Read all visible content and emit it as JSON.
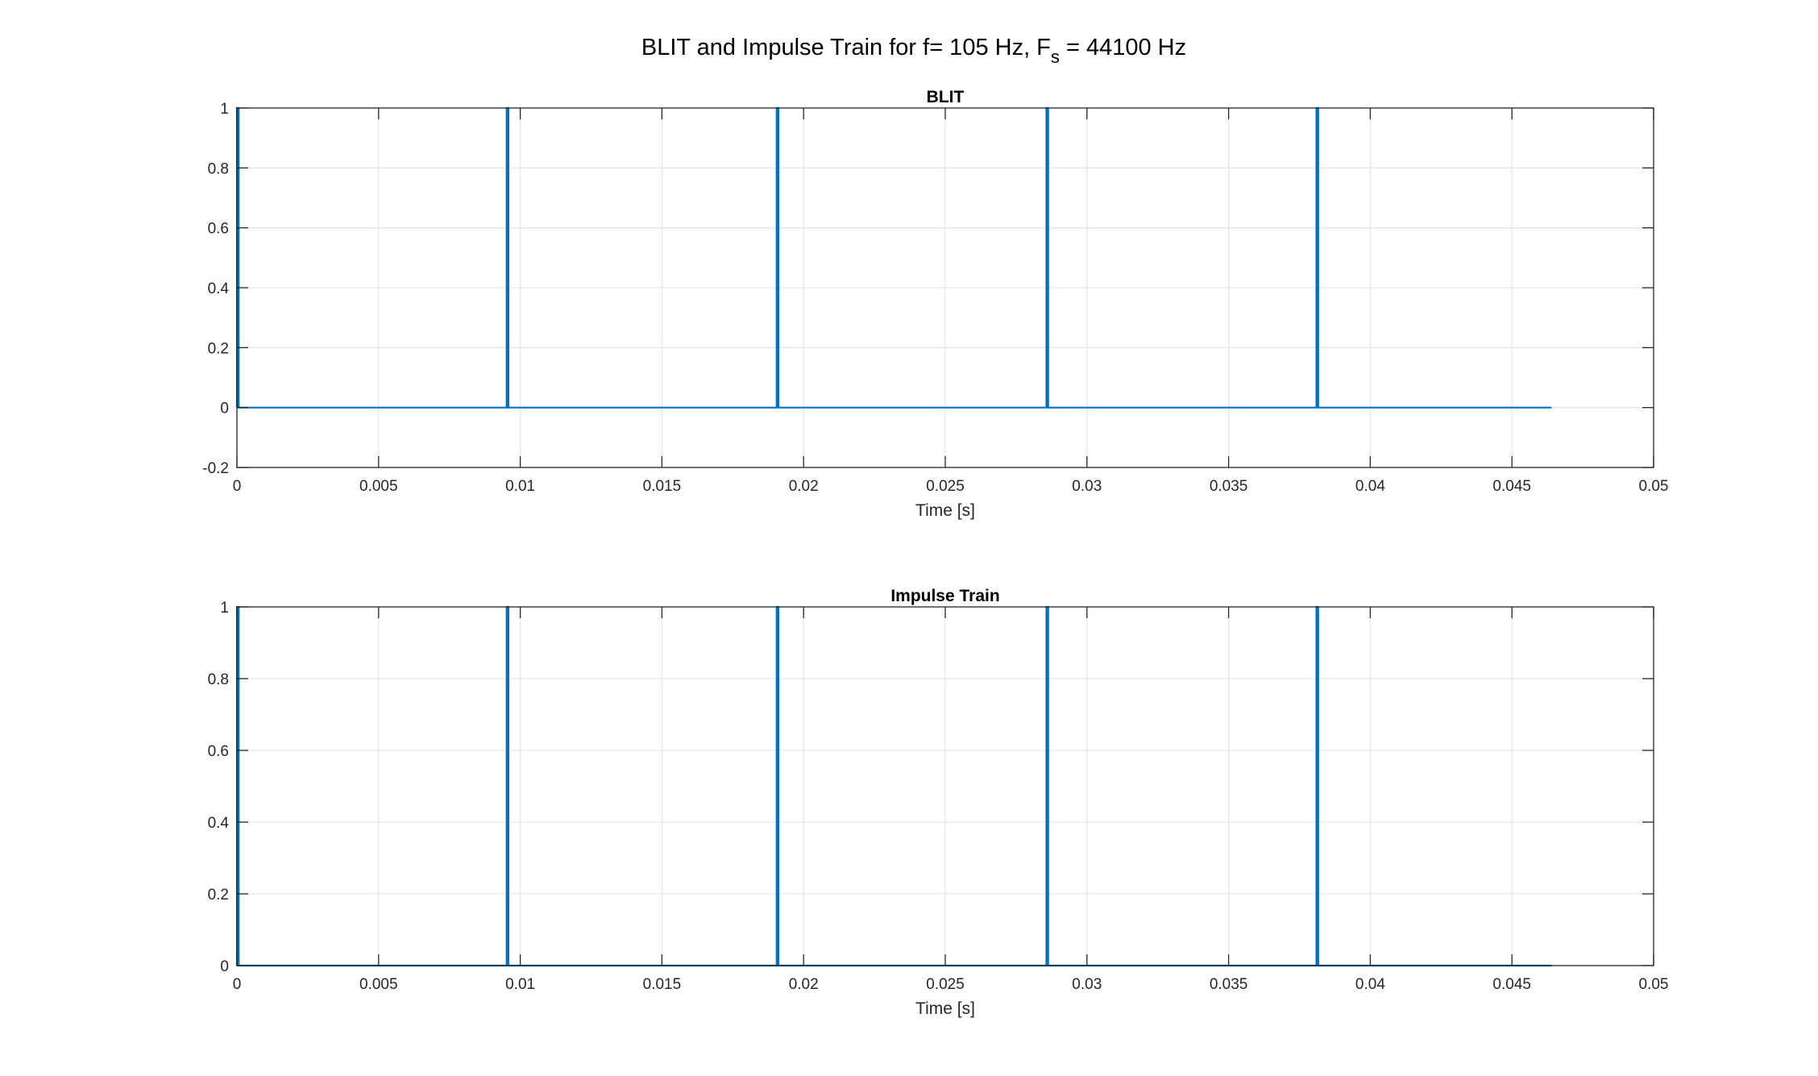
{
  "figure": {
    "title_main": "BLIT and Impulse Train for f= 105 Hz, F",
    "title_sub": "s",
    "title_tail": " = 44100 Hz"
  },
  "chart_data": [
    {
      "type": "line",
      "title": "BLIT",
      "xlabel": "Time [s]",
      "ylabel": "",
      "xlim": [
        0,
        0.05
      ],
      "ylim": [
        -0.2,
        1
      ],
      "xticks": [
        0,
        0.005,
        0.01,
        0.015,
        0.02,
        0.025,
        0.03,
        0.035,
        0.04,
        0.045,
        0.05
      ],
      "xtick_labels": [
        "0",
        "0.005",
        "0.01",
        "0.015",
        "0.02",
        "0.025",
        "0.03",
        "0.035",
        "0.04",
        "0.045",
        "0.05"
      ],
      "yticks": [
        -0.2,
        0,
        0.2,
        0.4,
        0.6,
        0.8,
        1
      ],
      "ytick_labels": [
        "-0.2",
        "0",
        "0.2",
        "0.4",
        "0.6",
        "0.8",
        "1"
      ],
      "grid": true,
      "color": "#0072BD",
      "series": [
        {
          "baseline": 0,
          "x_end": 0.0464,
          "impulses": [
            {
              "x": 0.0,
              "y": 1
            },
            {
              "x": 0.00952,
              "y": 1
            },
            {
              "x": 0.01905,
              "y": 1
            },
            {
              "x": 0.02857,
              "y": 1
            },
            {
              "x": 0.0381,
              "y": 1
            }
          ]
        }
      ]
    },
    {
      "type": "line",
      "title": "Impulse Train",
      "xlabel": "Time [s]",
      "ylabel": "",
      "xlim": [
        0,
        0.05
      ],
      "ylim": [
        0,
        1
      ],
      "xticks": [
        0,
        0.005,
        0.01,
        0.015,
        0.02,
        0.025,
        0.03,
        0.035,
        0.04,
        0.045,
        0.05
      ],
      "xtick_labels": [
        "0",
        "0.005",
        "0.01",
        "0.015",
        "0.02",
        "0.025",
        "0.03",
        "0.035",
        "0.04",
        "0.045",
        "0.05"
      ],
      "yticks": [
        0,
        0.2,
        0.4,
        0.6,
        0.8,
        1
      ],
      "ytick_labels": [
        "0",
        "0.2",
        "0.4",
        "0.6",
        "0.8",
        "1"
      ],
      "grid": true,
      "color": "#0072BD",
      "series": [
        {
          "baseline": 0,
          "x_end": 0.0464,
          "impulses": [
            {
              "x": 0.0,
              "y": 1
            },
            {
              "x": 0.00952,
              "y": 1
            },
            {
              "x": 0.01905,
              "y": 1
            },
            {
              "x": 0.02857,
              "y": 1
            },
            {
              "x": 0.0381,
              "y": 1
            }
          ]
        }
      ]
    }
  ]
}
